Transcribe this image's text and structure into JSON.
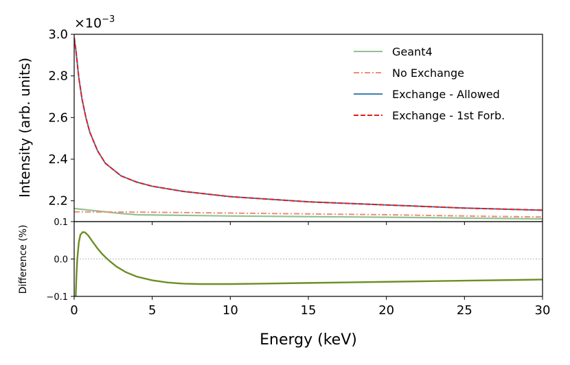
{
  "chart_data": [
    {
      "type": "line",
      "panel": "top",
      "title": "",
      "xlabel": "",
      "ylabel": "Intensity (arb. units)",
      "y_scale_label": "×10",
      "y_scale_exponent": "−3",
      "xlim": [
        0,
        30
      ],
      "ylim": [
        2.1,
        3.0
      ],
      "yticks": [
        2.2,
        2.4,
        2.6,
        2.8,
        3.0
      ],
      "ytick_labels": [
        "2.2",
        "2.4",
        "2.6",
        "2.8",
        "3.0"
      ],
      "grid": false,
      "legend_position": "top-right",
      "series": [
        {
          "name": "Geant4",
          "color": "#8fc28f",
          "dash": "solid",
          "x": [
            0,
            0.5,
            1,
            2,
            3,
            3.5,
            4,
            6,
            8,
            10,
            15,
            20,
            25,
            30
          ],
          "y": [
            2.163,
            2.159,
            2.155,
            2.147,
            2.139,
            2.136,
            2.133,
            2.131,
            2.129,
            2.127,
            2.124,
            2.121,
            2.117,
            2.113
          ]
        },
        {
          "name": "No Exchange",
          "color": "#f08a78",
          "dash": "dashdot",
          "x": [
            0,
            5,
            10,
            15,
            20,
            25,
            30
          ],
          "y": [
            2.147,
            2.145,
            2.141,
            2.137,
            2.133,
            2.127,
            2.122
          ]
        },
        {
          "name": "Exchange - Allowed",
          "color": "#3b7fb0",
          "dash": "solid",
          "x": [
            0,
            0.1,
            0.2,
            0.3,
            0.5,
            0.75,
            1,
            1.5,
            2,
            3,
            4,
            5,
            7,
            10,
            15,
            20,
            25,
            30
          ],
          "y": [
            2.985,
            2.93,
            2.86,
            2.79,
            2.69,
            2.6,
            2.53,
            2.44,
            2.38,
            2.32,
            2.29,
            2.27,
            2.245,
            2.22,
            2.195,
            2.18,
            2.165,
            2.155
          ]
        },
        {
          "name": "Exchange - 1st Forb.",
          "color": "#e41a1c",
          "dash": "dashed",
          "x": [
            0,
            0.1,
            0.2,
            0.3,
            0.5,
            0.75,
            1,
            1.5,
            2,
            3,
            4,
            5,
            7,
            10,
            15,
            20,
            25,
            30
          ],
          "y": [
            2.985,
            2.93,
            2.86,
            2.79,
            2.69,
            2.6,
            2.53,
            2.44,
            2.38,
            2.32,
            2.29,
            2.27,
            2.245,
            2.22,
            2.195,
            2.18,
            2.165,
            2.155
          ]
        }
      ]
    },
    {
      "type": "line",
      "panel": "bottom",
      "title": "",
      "xlabel": "Energy (keV)",
      "ylabel": "Difference (%)",
      "xlim": [
        0,
        30
      ],
      "ylim": [
        -0.1,
        0.1
      ],
      "xticks": [
        0,
        5,
        10,
        15,
        20,
        25,
        30
      ],
      "xtick_labels": [
        "0",
        "5",
        "10",
        "15",
        "20",
        "25",
        "30"
      ],
      "yticks": [
        -0.1,
        0.0,
        0.1
      ],
      "ytick_labels": [
        "−0.1",
        "0.0",
        "0.1"
      ],
      "reference_line": 0.0,
      "grid": false,
      "series": [
        {
          "name": "Difference",
          "color": "#6b8e23",
          "dash": "solid",
          "x": [
            0.1,
            0.15,
            0.2,
            0.3,
            0.4,
            0.55,
            0.7,
            0.9,
            1.2,
            1.5,
            1.8,
            2.2,
            2.7,
            3.3,
            4,
            5,
            6,
            7,
            8,
            10,
            12,
            15,
            20,
            25,
            30
          ],
          "y": [
            -0.1,
            -0.04,
            0.0,
            0.045,
            0.065,
            0.072,
            0.071,
            0.063,
            0.045,
            0.028,
            0.013,
            -0.003,
            -0.02,
            -0.035,
            -0.047,
            -0.057,
            -0.063,
            -0.066,
            -0.067,
            -0.067,
            -0.066,
            -0.064,
            -0.061,
            -0.058,
            -0.055
          ]
        }
      ]
    }
  ]
}
